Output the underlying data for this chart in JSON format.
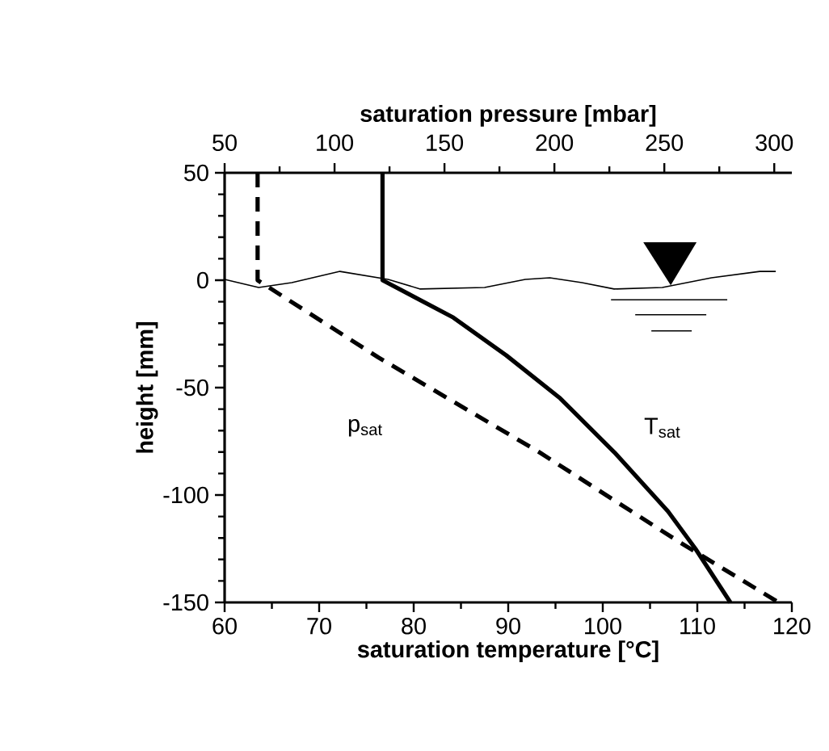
{
  "chart_data": {
    "type": "line",
    "xlabel": "saturation temperature [°C]",
    "x2label": "saturation pressure [mbar]",
    "ylabel": "height [mm]",
    "xlim": [
      60,
      120
    ],
    "xticks": [
      60,
      70,
      80,
      90,
      100,
      110,
      120
    ],
    "x2lim": [
      50,
      308
    ],
    "x2ticks": [
      50,
      100,
      150,
      200,
      250,
      300
    ],
    "ylim": [
      -150,
      50
    ],
    "yticks": [
      -150,
      -100,
      -50,
      0,
      50
    ],
    "marker": "none",
    "series": [
      {
        "name": "T$_{sat}$",
        "color": "#000000",
        "line_style": "solid",
        "x": [
          76.7,
          76.7,
          84.2,
          89.8,
          95.5,
          101.2,
          106.9,
          109.8,
          113.5
        ],
        "values": [
          50,
          0,
          -17.4,
          -35,
          -55,
          -80,
          -107.6,
          -125,
          -150
        ]
      },
      {
        "name": "p$_{sat}$",
        "color": "#000000",
        "line_style": "dashed",
        "axis": "x2",
        "x": [
          65,
          65,
          120,
          193,
          257,
          302
        ],
        "values": [
          50,
          0,
          -36,
          -80,
          -122,
          -150
        ]
      },
      {
        "color": "#000000",
        "line_style": "solid",
        "x": [
          60,
          63.6,
          67.1,
          72.2,
          77.3,
          80.7,
          87.5,
          91.8,
          94.4,
          97.8,
          101.2,
          106.3,
          111.5,
          116.6,
          118.3
        ],
        "values": [
          0.4,
          -3.4,
          -1.1,
          4.1,
          0.4,
          -4.1,
          -3.4,
          0.4,
          1.1,
          -1.1,
          -4.1,
          -3.4,
          1.1,
          4.1,
          4.1
        ]
      }
    ]
  }
}
